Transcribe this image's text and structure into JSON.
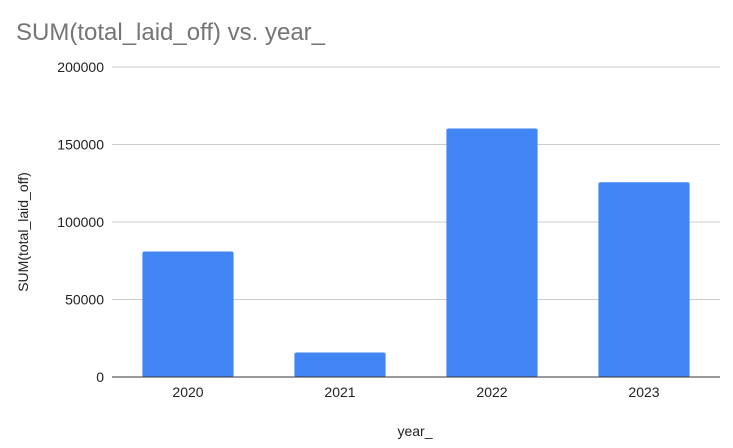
{
  "chart_data": {
    "type": "bar",
    "title": "SUM(total_laid_off) vs. year_",
    "xlabel": "year_",
    "ylabel": "SUM(total_laid_off)",
    "categories": [
      "2020",
      "2021",
      "2022",
      "2023"
    ],
    "values": [
      80998,
      15823,
      160322,
      125677
    ],
    "ylim": [
      0,
      200000
    ],
    "yticks": [
      "0",
      "50000",
      "100000",
      "150000",
      "200000"
    ],
    "grid": true,
    "legend": "none",
    "bar_color": "#4285f4"
  }
}
